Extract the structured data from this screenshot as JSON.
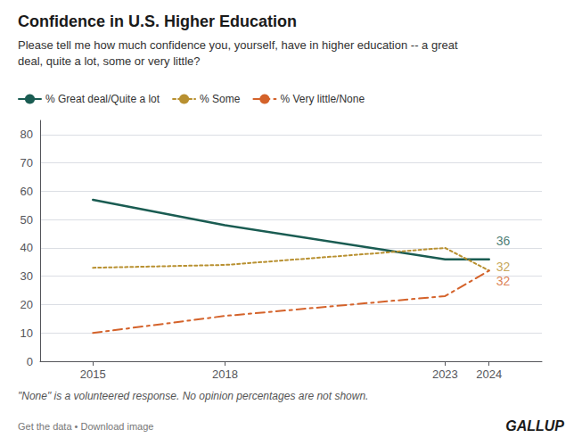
{
  "chart_data": {
    "type": "line",
    "title": "Confidence in U.S. Higher Education",
    "subtitle": "Please tell me how much confidence you, yourself, have in higher education -- a great\ndeal, quite a lot, some or very little?",
    "footnote": "\"None\" is a volunteered response. No opinion percentages are not shown.",
    "footer_left": "Get the data • Download image",
    "footer_right": "GALLUP",
    "x": [
      2015,
      2018,
      2023,
      2024
    ],
    "series": [
      {
        "name": "% Great deal/Quite a lot",
        "color": "#1a5c52",
        "line_style": "solid",
        "values": [
          57,
          48,
          36,
          36
        ]
      },
      {
        "name": "% Some",
        "color": "#b89030",
        "line_style": "dotted",
        "values": [
          33,
          34,
          40,
          32
        ]
      },
      {
        "name": "% Very little/None",
        "color": "#d4622a",
        "line_style": "dashdot",
        "values": [
          10,
          16,
          23,
          32
        ]
      }
    ],
    "annotations": [
      {
        "text": "36",
        "x": 2024,
        "y": 36,
        "color": "#1a5c52"
      },
      {
        "text": "32",
        "x": 2024,
        "y": 32,
        "color": "#b89030"
      },
      {
        "text": "32",
        "x": 2024,
        "y": 32,
        "color": "#d4622a"
      }
    ],
    "xlim": [
      2013.8,
      2025.2
    ],
    "xticks": [
      2015,
      2018,
      2023,
      2024
    ],
    "ylim": [
      0,
      85
    ],
    "yticks": [
      0,
      10,
      20,
      30,
      40,
      50,
      60,
      70,
      80
    ],
    "grid": true,
    "legend": "top left"
  }
}
